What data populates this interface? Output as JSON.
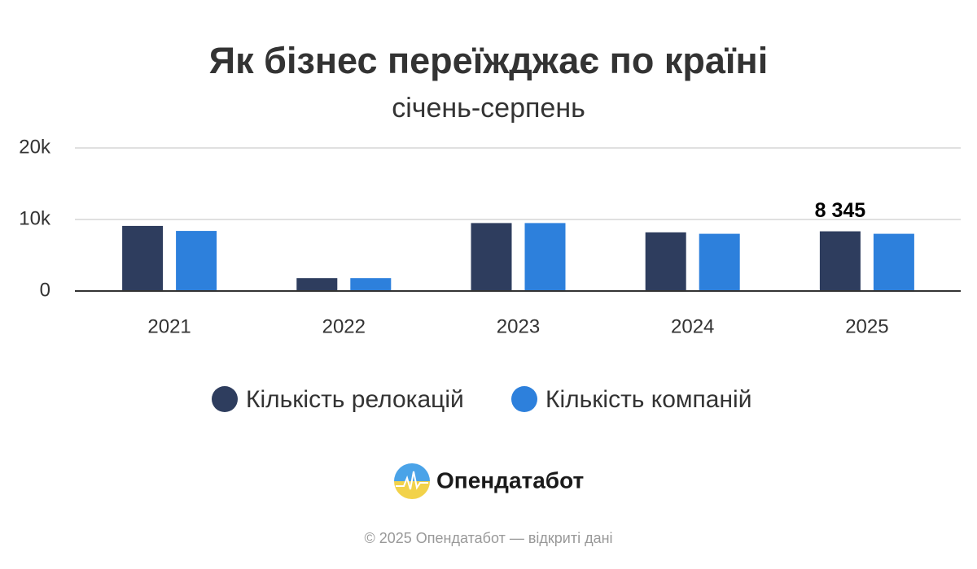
{
  "chart_data": {
    "type": "bar",
    "title": "Як бізнес переїжджає по країні",
    "subtitle": "січень-серпень",
    "categories": [
      "2021",
      "2022",
      "2023",
      "2024",
      "2025"
    ],
    "series": [
      {
        "name": "Кількість релокацій",
        "color": "#2e3d5e",
        "values": [
          9100,
          1800,
          9500,
          8200,
          8345
        ],
        "value_labels": [
          null,
          null,
          null,
          null,
          "8 345"
        ]
      },
      {
        "name": "Кількість компаній",
        "color": "#2d80dc",
        "values": [
          8400,
          1800,
          9500,
          8000,
          8000
        ]
      }
    ],
    "ylim": [
      0,
      20000
    ],
    "yticks": [
      0,
      {
        "value": 10000,
        "label": "10k"
      },
      {
        "value": 20000,
        "label": "20k"
      }
    ],
    "grid": true,
    "legend": "bottom"
  },
  "branding": {
    "logo_text": "Опендатабот",
    "footer": "© 2025 Опендатабот — відкриті дані"
  }
}
